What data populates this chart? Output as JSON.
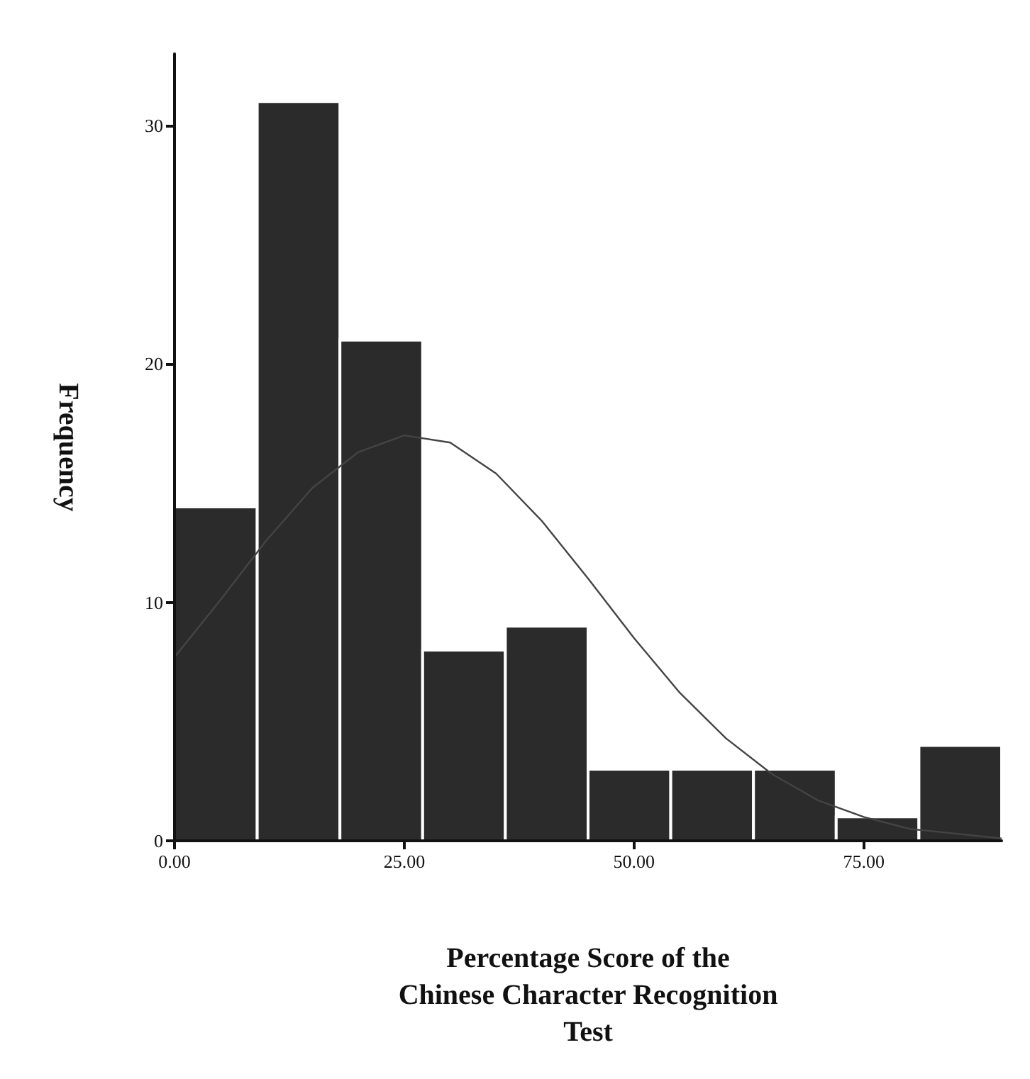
{
  "chart_data": {
    "type": "histogram",
    "xlabel": "Percentage Score of the Chinese Character Recognition Test",
    "ylabel": "Frequency",
    "bins": [
      0,
      9,
      18,
      27,
      36,
      45,
      54,
      63,
      72,
      81,
      90
    ],
    "values": [
      14,
      31,
      21,
      8,
      9,
      3,
      3,
      3,
      1,
      4
    ],
    "color": "#2b2b2b",
    "xlim": [
      0,
      90
    ],
    "xticks": [
      {
        "value": 0,
        "label": "0.00"
      },
      {
        "value": 25,
        "label": "25.00"
      },
      {
        "value": 50,
        "label": "50.00"
      },
      {
        "value": 75,
        "label": "75.00"
      }
    ],
    "ylim": [
      0,
      33
    ],
    "yticks": [
      0,
      10,
      20,
      30
    ],
    "grid": false,
    "series": [
      {
        "type": "line",
        "color": "#444444",
        "x": [
          0,
          5,
          10,
          15,
          20,
          25,
          30,
          35,
          40,
          45,
          50,
          55,
          60,
          65,
          70,
          75,
          80,
          85,
          90
        ],
        "values": [
          7.7,
          10.1,
          12.6,
          14.8,
          16.3,
          17.0,
          16.7,
          15.4,
          13.4,
          11.0,
          8.5,
          6.2,
          4.3,
          2.8,
          1.7,
          1.0,
          0.5,
          0.3,
          0.1
        ]
      }
    ]
  }
}
